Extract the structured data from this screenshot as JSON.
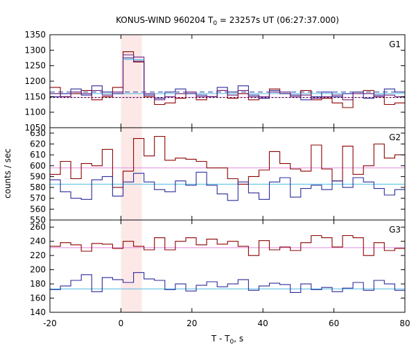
{
  "chart_data": {
    "type": "line",
    "title_main": "KONUS-WIND 960204 T",
    "title_sub": "0",
    "title_rest": " = 23257s UT (06:27:37.000)",
    "xlabel_main": "T - T",
    "xlabel_sub": "0",
    "xlabel_rest": ", s",
    "ylabel": "counts / sec",
    "xlim": [
      -20,
      80
    ],
    "x_ticks": [
      -20,
      0,
      20,
      40,
      60,
      80
    ],
    "bin_start": -20,
    "bin_width": 2.944,
    "highlight": {
      "x0": 0,
      "x1": 5.9,
      "color": "#fde8e8"
    },
    "colors": {
      "red_series": "#8b0000",
      "blue_series": "#2a2a9a",
      "purple_series": "#6a1e7a",
      "cyan_series": "#4dbbe0",
      "red_baseline": "#e38be0",
      "blue_baseline": "#4dbbe0",
      "dashed_baseline": "#1f3fa8",
      "dotted_baseline": "#000000"
    },
    "panels": [
      {
        "label": "G1",
        "ylim": [
          1050,
          1350
        ],
        "y_ticks": [
          1050,
          1100,
          1150,
          1200,
          1250,
          1300,
          1350
        ],
        "baselines": [
          {
            "y": 1148,
            "color_key": "red_baseline",
            "style": "solid"
          },
          {
            "y": 1160,
            "color_key": "blue_baseline",
            "style": "solid"
          },
          {
            "y": 1165,
            "color_key": "dashed_baseline",
            "style": "dashed"
          },
          {
            "y": 1147,
            "color_key": "dotted_baseline",
            "style": "dotted"
          }
        ],
        "series": [
          {
            "color_key": "red_series",
            "values": [
              1180,
              1150,
              1160,
              1170,
              1140,
              1150,
              1180,
              1295,
              1262,
              1150,
              1125,
              1130,
              1145,
              1165,
              1140,
              1150,
              1170,
              1145,
              1160,
              1140,
              1145,
              1175,
              1160,
              1155,
              1170,
              1140,
              1145,
              1130,
              1115,
              1165,
              1170,
              1150,
              1125,
              1130,
              1145,
              1160,
              1200
            ]
          },
          {
            "color_key": "blue_series",
            "values": [
              1150,
              1160,
              1175,
              1155,
              1185,
              1165,
              1160,
              1275,
              1265,
              1155,
              1145,
              1165,
              1175,
              1160,
              1155,
              1150,
              1180,
              1165,
              1185,
              1155,
              1145,
              1170,
              1160,
              1155,
              1140,
              1150,
              1165,
              1150,
              1160,
              1165,
              1145,
              1155,
              1175,
              1165,
              1155,
              1150,
              1170
            ]
          },
          {
            "color_key": "purple_series",
            "values": [
              1160,
              1150,
              1165,
              1160,
              1170,
              1155,
              1165,
              1285,
              1278,
              1160,
              1140,
              1150,
              1160,
              1165,
              1150,
              1150,
              1170,
              1155,
              1170,
              1150,
              1150,
              1165,
              1165,
              1150,
              1155,
              1145,
              1150,
              1155,
              1140,
              1160,
              1160,
              1150,
              1155,
              1150,
              1150,
              1160,
              1180
            ]
          },
          {
            "color_key": "cyan_series",
            "values": [
              null,
              null,
              null,
              null,
              null,
              null,
              null,
              1270,
              1270,
              null,
              null,
              null,
              null,
              null,
              null,
              null,
              null,
              null,
              null,
              null,
              null,
              null,
              null,
              null,
              null,
              null,
              null,
              null,
              null,
              null,
              null,
              null,
              null,
              null,
              null,
              null,
              null
            ]
          }
        ]
      },
      {
        "label": "G2",
        "ylim": [
          550,
          635
        ],
        "y_ticks": [
          550,
          560,
          570,
          580,
          590,
          600,
          610,
          620,
          630
        ],
        "baselines": [
          {
            "y": 598,
            "color_key": "red_baseline",
            "style": "solid"
          },
          {
            "y": 583,
            "color_key": "blue_baseline",
            "style": "solid"
          }
        ],
        "series": [
          {
            "color_key": "red_series",
            "values": [
              592,
              604,
              588,
              602,
              600,
              615,
              580,
              595,
              625,
              609,
              627,
              605,
              607,
              606,
              604,
              598,
              598,
              588,
              583,
              590,
              596,
              613,
              602,
              597,
              595,
              619,
              597,
              586,
              618,
              592,
              600,
              620,
              607,
              610,
              602,
              616,
              598
            ]
          },
          {
            "color_key": "blue_series",
            "values": [
              587,
              576,
              570,
              569,
              587,
              590,
              572,
              585,
              593,
              585,
              578,
              576,
              586,
              582,
              594,
              582,
              574,
              568,
              585,
              575,
              569,
              585,
              589,
              571,
              579,
              582,
              578,
              586,
              580,
              589,
              585,
              579,
              573,
              578,
              590,
              587,
              579
            ]
          }
        ]
      },
      {
        "label": "G3",
        "ylim": [
          140,
          270
        ],
        "y_ticks": [
          140,
          160,
          180,
          200,
          220,
          240,
          260
        ],
        "baselines": [
          {
            "y": 231,
            "color_key": "red_baseline",
            "style": "solid"
          },
          {
            "y": 173,
            "color_key": "blue_baseline",
            "style": "solid"
          }
        ],
        "series": [
          {
            "color_key": "red_series",
            "values": [
              233,
              238,
              235,
              226,
              237,
              236,
              230,
              240,
              233,
              228,
              245,
              228,
              240,
              245,
              235,
              243,
              236,
              240,
              233,
              220,
              241,
              228,
              232,
              227,
              238,
              248,
              245,
              232,
              248,
              245,
              220,
              238,
              227,
              230,
              237,
              232,
              244
            ]
          },
          {
            "color_key": "blue_series",
            "values": [
              172,
              177,
              185,
              193,
              169,
              189,
              186,
              182,
              196,
              187,
              185,
              172,
              180,
              170,
              178,
              183,
              176,
              180,
              186,
              171,
              177,
              181,
              179,
              168,
              180,
              172,
              175,
              169,
              174,
              182,
              171,
              185,
              180,
              171,
              172,
              176,
              181
            ]
          }
        ]
      }
    ]
  }
}
